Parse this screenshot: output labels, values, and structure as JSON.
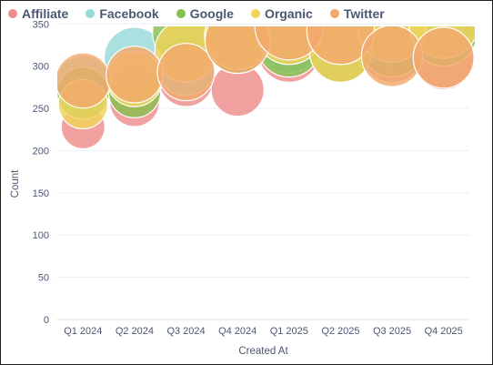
{
  "chart_data": {
    "type": "scatter",
    "subtype": "bubble",
    "title": "",
    "xlabel": "Created At",
    "ylabel": "Count",
    "ylim": [
      0,
      360
    ],
    "yticks": [
      0,
      50,
      100,
      150,
      200,
      250,
      300,
      350
    ],
    "grid": true,
    "legend_position": "top-left",
    "categories": [
      "Q1 2024",
      "Q2 2024",
      "Q3 2024",
      "Q4 2024",
      "Q1 2025",
      "Q2 2025",
      "Q3 2025",
      "Q4 2025"
    ],
    "series": [
      {
        "name": "Affiliate",
        "color": "#ef8c8c",
        "values": [
          228,
          258,
          285,
          272,
          318,
          318,
          318,
          308
        ]
      },
      {
        "name": "Facebook",
        "color": "#98d9d9",
        "values": [
          280,
          310,
          300,
          338,
          330,
          330,
          338,
          345
        ]
      },
      {
        "name": "Google",
        "color": "#88bf4d",
        "values": [
          268,
          270,
          340,
          330,
          325,
          318,
          325,
          340
        ]
      },
      {
        "name": "Organic",
        "color": "#f2d35c",
        "values": [
          255,
          285,
          318,
          335,
          342,
          318,
          345,
          350
        ]
      },
      {
        "name": "Twitter",
        "color": "#f1a96b",
        "values": [
          283,
          290,
          293,
          330,
          348,
          342,
          312,
          310
        ]
      }
    ]
  }
}
